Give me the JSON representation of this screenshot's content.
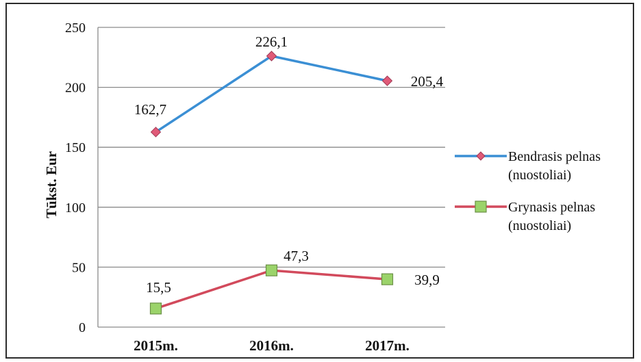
{
  "chart_data": {
    "type": "line",
    "ylabel": "Tūkst. Eur",
    "xlabel": "",
    "categories": [
      "2015m.",
      "2016m.",
      "2017m."
    ],
    "ylim": [
      0,
      250
    ],
    "yticks": [
      0,
      50,
      100,
      150,
      200,
      250
    ],
    "grid": "horizontal",
    "legend_position": "right",
    "series": [
      {
        "name_lines": [
          "Bendrasis pelnas",
          "(nuostoliai)"
        ],
        "values": [
          162.7,
          226.1,
          205.4
        ],
        "labels": [
          "162,7",
          "226,1",
          "205,4"
        ],
        "color": "#3b8fd4",
        "marker": "diamond",
        "marker_fill": "#e05a78"
      },
      {
        "name_lines": [
          "Grynasis pelnas",
          "(nuostoliai)"
        ],
        "values": [
          15.5,
          47.3,
          39.9
        ],
        "labels": [
          "15,5",
          "47,3",
          "39,9"
        ],
        "color": "#d24a5c",
        "marker": "square",
        "marker_fill": "#9bd36a"
      }
    ]
  }
}
